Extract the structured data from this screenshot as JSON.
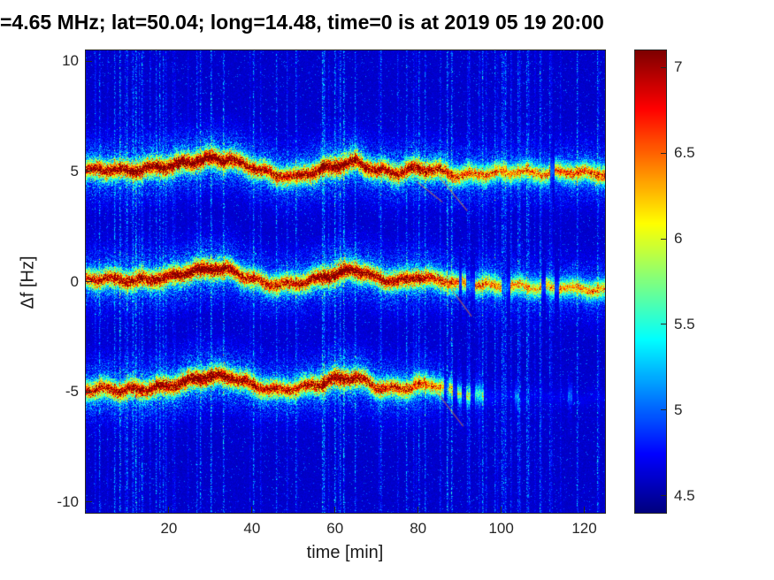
{
  "chart_data": {
    "type": "heatmap",
    "title": "=4.65 MHz;  lat=50.04; long=14.48, time=0 is at 2019 05 19 20:00",
    "xlabel": "time [min]",
    "ylabel": "Δf [Hz]",
    "colormap": "jet",
    "xlim": [
      0,
      125
    ],
    "ylim": [
      -10.5,
      10.5
    ],
    "clim": [
      4.4,
      7.1
    ],
    "xticks": [
      20,
      40,
      60,
      80,
      100,
      120
    ],
    "yticks": [
      -10,
      -5,
      0,
      5,
      10
    ],
    "colorbar_ticks": [
      4.5,
      5,
      5.5,
      6,
      6.5,
      7
    ],
    "background_value": 4.55,
    "grid": false,
    "legend": "none",
    "bands": [
      {
        "name": "upper-doppler-trace",
        "trace_t": [
          0,
          5,
          10,
          15,
          20,
          25,
          30,
          35,
          40,
          45,
          50,
          55,
          60,
          65,
          70,
          75,
          80,
          85,
          90,
          95,
          100,
          105,
          110,
          115,
          120,
          125
        ],
        "trace_f": [
          5.05,
          5.1,
          5.05,
          5.15,
          5.25,
          5.45,
          5.6,
          5.55,
          5.2,
          4.85,
          4.75,
          5.0,
          5.25,
          5.45,
          5.05,
          4.95,
          5.15,
          5.05,
          4.8,
          4.9,
          4.95,
          5.0,
          4.9,
          5.0,
          4.95,
          4.9
        ],
        "intensity_t": [
          0,
          10,
          20,
          30,
          40,
          50,
          60,
          70,
          80,
          90,
          100,
          110,
          120,
          130
        ],
        "intensity": [
          0.85,
          0.9,
          0.95,
          1.0,
          0.85,
          0.8,
          1.0,
          0.85,
          0.9,
          0.7,
          0.62,
          0.62,
          0.72,
          0.7
        ]
      },
      {
        "name": "center-doppler-trace",
        "trace_t": [
          0,
          5,
          10,
          15,
          20,
          25,
          30,
          35,
          40,
          45,
          50,
          55,
          60,
          65,
          70,
          75,
          80,
          85,
          90,
          95,
          100,
          105,
          110,
          115,
          120,
          125
        ],
        "trace_f": [
          0.1,
          0.15,
          0.05,
          0.1,
          0.2,
          0.45,
          0.6,
          0.5,
          0.1,
          -0.15,
          -0.1,
          0.1,
          0.35,
          0.55,
          0.15,
          0.0,
          0.2,
          0.1,
          -0.1,
          -0.15,
          -0.2,
          -0.2,
          -0.3,
          -0.25,
          -0.35,
          -0.4
        ],
        "intensity_t": [
          0,
          10,
          20,
          30,
          40,
          50,
          60,
          70,
          80,
          90,
          100,
          110,
          120,
          130
        ],
        "intensity": [
          0.8,
          0.85,
          0.9,
          1.0,
          0.8,
          0.8,
          1.0,
          0.85,
          0.85,
          0.65,
          0.6,
          0.55,
          0.62,
          0.6
        ]
      },
      {
        "name": "lower-doppler-trace",
        "trace_t": [
          0,
          5,
          10,
          15,
          20,
          25,
          30,
          35,
          40,
          45,
          50,
          55,
          60,
          65,
          70,
          75,
          80,
          85,
          90,
          95,
          100,
          105,
          110,
          115,
          120,
          125
        ],
        "trace_f": [
          -4.95,
          -4.9,
          -4.95,
          -4.85,
          -4.75,
          -4.5,
          -4.3,
          -4.35,
          -4.7,
          -4.95,
          -4.9,
          -4.7,
          -4.45,
          -4.35,
          -4.8,
          -4.9,
          -4.7,
          -4.75,
          -5.1,
          -5.2,
          -5.2,
          -5.25,
          -5.2,
          -5.25,
          -5.3,
          -5.3
        ],
        "intensity_t": [
          0,
          10,
          20,
          30,
          40,
          50,
          60,
          70,
          80,
          90,
          100,
          110,
          120,
          130
        ],
        "intensity": [
          0.8,
          0.85,
          0.9,
          1.0,
          0.85,
          0.75,
          0.95,
          0.8,
          0.75,
          0.45,
          0.2,
          0.15,
          0.15,
          0.15
        ]
      }
    ],
    "streaks": [
      [
        80,
        4.5,
        86,
        3.6
      ],
      [
        85,
        4.8,
        92,
        3.2
      ],
      [
        86,
        0.2,
        93,
        -1.6
      ],
      [
        84,
        -4.9,
        91,
        -6.6
      ]
    ],
    "strong_stripes_t": [
      8,
      12,
      30,
      33,
      57,
      60,
      62,
      87,
      88
    ]
  }
}
